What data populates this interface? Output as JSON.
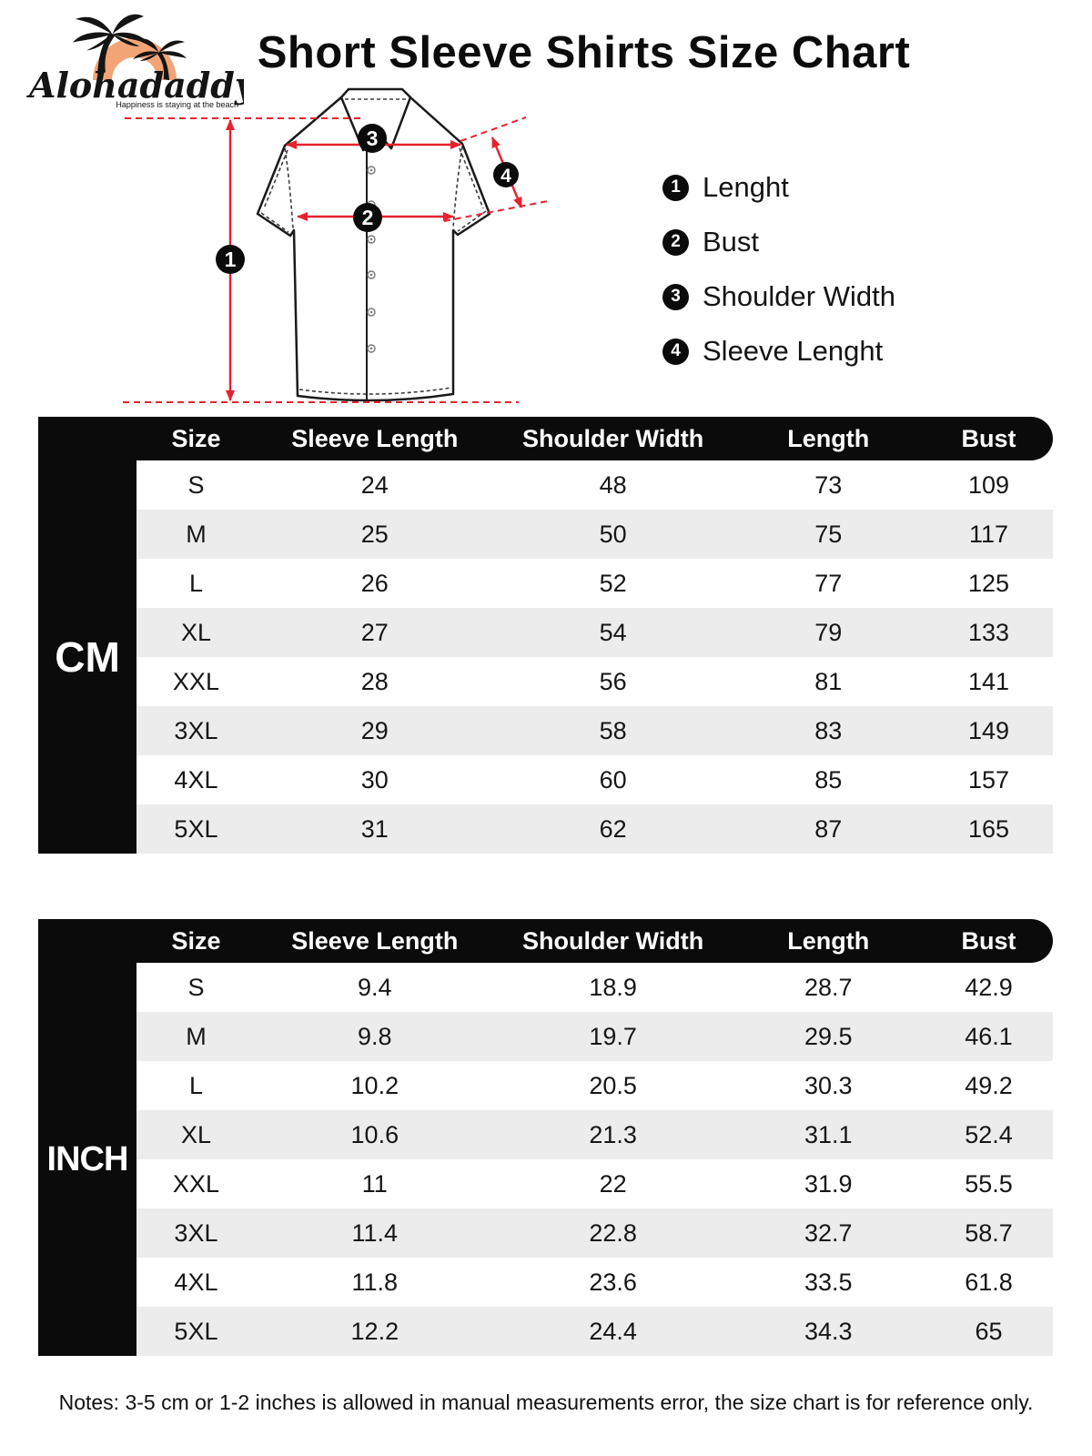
{
  "brand": {
    "name": "Alohadaddy",
    "tagline": "Happiness is staying at the beach"
  },
  "title": "Short Sleeve Shirts Size Chart",
  "diagram": {
    "labels": [
      {
        "num": "1",
        "text": "Lenght"
      },
      {
        "num": "2",
        "text": "Bust"
      },
      {
        "num": "3",
        "text": "Shoulder Width"
      },
      {
        "num": "4",
        "text": "Sleeve Lenght"
      }
    ]
  },
  "tables": [
    {
      "unit": "CM",
      "columns": [
        "Size",
        "Sleeve Length",
        "Shoulder Width",
        "Length",
        "Bust"
      ],
      "rows": [
        [
          "S",
          "24",
          "48",
          "73",
          "109"
        ],
        [
          "M",
          "25",
          "50",
          "75",
          "117"
        ],
        [
          "L",
          "26",
          "52",
          "77",
          "125"
        ],
        [
          "XL",
          "27",
          "54",
          "79",
          "133"
        ],
        [
          "XXL",
          "28",
          "56",
          "81",
          "141"
        ],
        [
          "3XL",
          "29",
          "58",
          "83",
          "149"
        ],
        [
          "4XL",
          "30",
          "60",
          "85",
          "157"
        ],
        [
          "5XL",
          "31",
          "62",
          "87",
          "165"
        ]
      ]
    },
    {
      "unit": "INCH",
      "columns": [
        "Size",
        "Sleeve Length",
        "Shoulder Width",
        "Length",
        "Bust"
      ],
      "rows": [
        [
          "S",
          "9.4",
          "18.9",
          "28.7",
          "42.9"
        ],
        [
          "M",
          "9.8",
          "19.7",
          "29.5",
          "46.1"
        ],
        [
          "L",
          "10.2",
          "20.5",
          "30.3",
          "49.2"
        ],
        [
          "XL",
          "10.6",
          "21.3",
          "31.1",
          "52.4"
        ],
        [
          "XXL",
          "11",
          "22",
          "31.9",
          "55.5"
        ],
        [
          "3XL",
          "11.4",
          "22.8",
          "32.7",
          "58.7"
        ],
        [
          "4XL",
          "11.8",
          "23.6",
          "33.5",
          "61.8"
        ],
        [
          "5XL",
          "12.2",
          "24.4",
          "34.3",
          "65"
        ]
      ]
    }
  ],
  "notes": "Notes: 3-5 cm or 1-2 inches is allowed in manual measurements error, the size chart is for reference only.",
  "colors": {
    "accent_red": "#e8212d",
    "logo_orange": "#f2a477",
    "row_alt": "#ececec",
    "ink_black": "#0b0b0b"
  }
}
